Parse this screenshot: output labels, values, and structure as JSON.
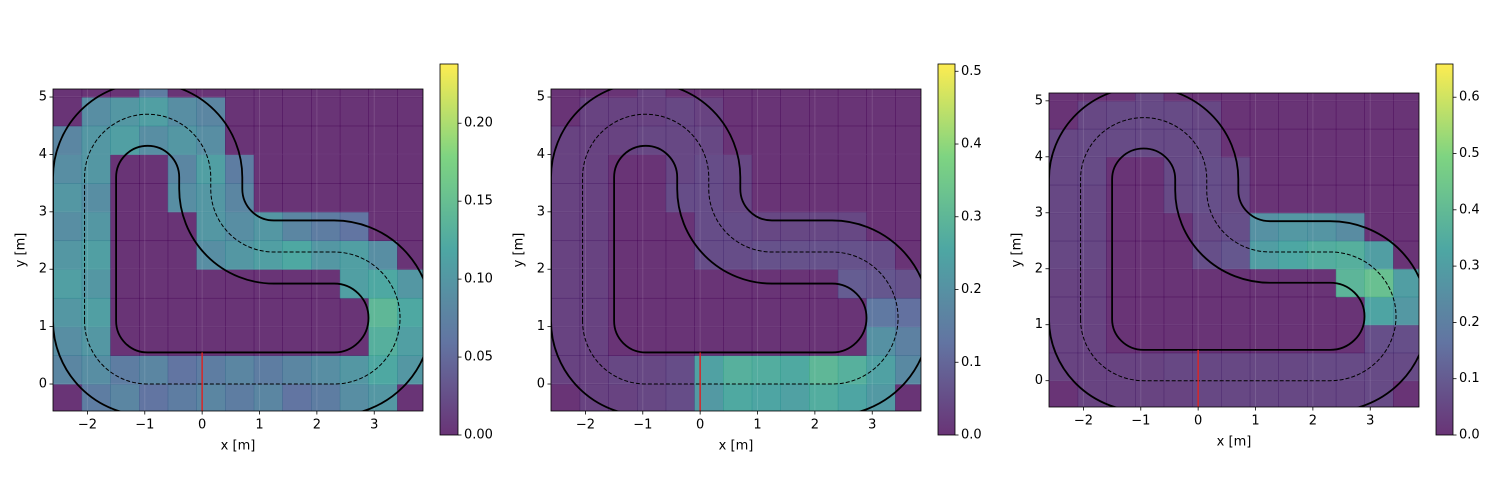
{
  "chart_data": [
    {
      "type": "heatmap",
      "xlabel": "x [m]",
      "ylabel": "y [m]",
      "colormap": "viridis",
      "alpha": 0.8,
      "xlim": [
        -2.6,
        3.85
      ],
      "ylim": [
        -0.47,
        5.14
      ],
      "xticks": [
        {
          "value": -2,
          "label": "−2"
        },
        {
          "value": -1,
          "label": "−1"
        },
        0,
        1,
        2,
        3
      ],
      "yticks": [
        0,
        1,
        2,
        3,
        4,
        5
      ],
      "x_edges": [
        -2.6,
        -2.1,
        -1.6,
        -1.1,
        -0.6,
        -0.1,
        0.4,
        0.9,
        1.4,
        1.9,
        2.4,
        2.9,
        3.4,
        3.9
      ],
      "y_edges": [
        -0.5,
        0,
        0.5,
        1,
        1.5,
        2,
        2.5,
        3,
        3.5,
        4,
        4.5,
        5,
        5.5
      ],
      "z": [
        [
          0,
          0.07,
          0.08,
          0.06,
          0.07,
          0.08,
          0.07,
          0.08,
          0.06,
          0.07,
          0.09,
          0.1,
          0
        ],
        [
          0.08,
          0.09,
          0.07,
          0.08,
          0.06,
          0.07,
          0.08,
          0.07,
          0.08,
          0.09,
          0.1,
          0.12,
          0.1
        ],
        [
          0.09,
          0.1,
          0,
          0,
          0,
          0,
          0,
          0,
          0,
          0,
          0,
          0.13,
          0.11
        ],
        [
          0.1,
          0.11,
          0,
          0,
          0,
          0,
          0,
          0,
          0,
          0,
          0,
          0.14,
          0.12
        ],
        [
          0.11,
          0.1,
          0,
          0,
          0,
          0,
          0,
          0,
          0,
          0,
          0.11,
          0.12,
          0.1
        ],
        [
          0.1,
          0.11,
          0,
          0,
          0,
          0.09,
          0.1,
          0.11,
          0.12,
          0.1,
          0.11,
          0.09,
          0
        ],
        [
          0.09,
          0.1,
          0,
          0,
          0,
          0.1,
          0.09,
          0.1,
          0.08,
          0.07,
          0.06,
          0,
          0
        ],
        [
          0.1,
          0.09,
          0,
          0,
          0.09,
          0.1,
          0.08,
          0,
          0,
          0,
          0,
          0,
          0
        ],
        [
          0.09,
          0.1,
          0,
          0,
          0.08,
          0.11,
          0.07,
          0,
          0,
          0,
          0,
          0,
          0
        ],
        [
          0.08,
          0.1,
          0.11,
          0.09,
          0.1,
          0.09,
          0,
          0,
          0,
          0,
          0,
          0,
          0
        ],
        [
          0,
          0.09,
          0.1,
          0.11,
          0.09,
          0.08,
          0,
          0,
          0,
          0,
          0,
          0,
          0
        ],
        [
          0,
          0,
          0,
          0.07,
          0,
          0,
          0,
          0,
          0,
          0,
          0,
          0,
          0
        ]
      ],
      "colorbar": {
        "lim": [
          0,
          0.238
        ],
        "ticks": [
          {
            "value": 0,
            "label": "0.00"
          },
          {
            "value": 0.05,
            "label": "0.05"
          },
          {
            "value": 0.1,
            "label": "0.10"
          },
          {
            "value": 0.15,
            "label": "0.15"
          },
          {
            "value": 0.2,
            "label": "0.20"
          }
        ]
      }
    },
    {
      "type": "heatmap",
      "xlabel": "x [m]",
      "ylabel": "y [m]",
      "colormap": "viridis",
      "alpha": 0.8,
      "xlim": [
        -2.6,
        3.85
      ],
      "ylim": [
        -0.47,
        5.14
      ],
      "xticks": [
        {
          "value": -2,
          "label": "−2"
        },
        {
          "value": -1,
          "label": "−1"
        },
        0,
        1,
        2,
        3
      ],
      "yticks": [
        0,
        1,
        2,
        3,
        4,
        5
      ],
      "x_edges": [
        -2.6,
        -2.1,
        -1.6,
        -1.1,
        -0.6,
        -0.1,
        0.4,
        0.9,
        1.4,
        1.9,
        2.4,
        2.9,
        3.4,
        3.9
      ],
      "y_edges": [
        -0.5,
        0,
        0.5,
        1,
        1.5,
        2,
        2.5,
        3,
        3.5,
        4,
        4.5,
        5,
        5.5
      ],
      "z": [
        [
          0,
          0.03,
          0.03,
          0.04,
          0.05,
          0.22,
          0.26,
          0.25,
          0.24,
          0.27,
          0.25,
          0.22,
          0
        ],
        [
          0.03,
          0.03,
          0.04,
          0.04,
          0.05,
          0.24,
          0.28,
          0.27,
          0.26,
          0.3,
          0.28,
          0.24,
          0.18
        ],
        [
          0.03,
          0.03,
          0,
          0,
          0,
          0,
          0,
          0,
          0,
          0,
          0,
          0.2,
          0.16
        ],
        [
          0.03,
          0.03,
          0,
          0,
          0,
          0,
          0,
          0,
          0,
          0,
          0,
          0.14,
          0.12
        ],
        [
          0.03,
          0.03,
          0,
          0,
          0,
          0,
          0,
          0,
          0,
          0,
          0.08,
          0.07,
          0.06
        ],
        [
          0.03,
          0.03,
          0,
          0,
          0,
          0.05,
          0.05,
          0.06,
          0.06,
          0.06,
          0.06,
          0.05,
          0
        ],
        [
          0.03,
          0.03,
          0,
          0,
          0,
          0.05,
          0.05,
          0.04,
          0.04,
          0.04,
          0.04,
          0,
          0
        ],
        [
          0.03,
          0.03,
          0,
          0,
          0.05,
          0.05,
          0.04,
          0,
          0,
          0,
          0,
          0,
          0
        ],
        [
          0.03,
          0.03,
          0,
          0,
          0.04,
          0.05,
          0.04,
          0,
          0,
          0,
          0,
          0,
          0
        ],
        [
          0.03,
          0.03,
          0.03,
          0.04,
          0.04,
          0.04,
          0,
          0,
          0,
          0,
          0,
          0,
          0
        ],
        [
          0,
          0.03,
          0.03,
          0.03,
          0.04,
          0.03,
          0,
          0,
          0,
          0,
          0,
          0,
          0
        ],
        [
          0,
          0,
          0,
          0.03,
          0,
          0,
          0,
          0,
          0,
          0,
          0,
          0,
          0
        ]
      ],
      "colorbar": {
        "lim": [
          0,
          0.51
        ],
        "ticks": [
          {
            "value": 0,
            "label": "0.0"
          },
          0.1,
          0.2,
          0.3,
          0.4,
          0.5
        ]
      }
    },
    {
      "type": "heatmap",
      "xlabel": "x [m]",
      "ylabel": "y [m]",
      "colormap": "viridis",
      "alpha": 0.8,
      "xlim": [
        -2.6,
        3.85
      ],
      "ylim": [
        -0.47,
        5.14
      ],
      "xticks": [
        {
          "value": -2,
          "label": "−2"
        },
        {
          "value": -1,
          "label": "−1"
        },
        0,
        1,
        2,
        3
      ],
      "yticks": [
        0,
        1,
        2,
        3,
        4,
        5
      ],
      "x_edges": [
        -2.6,
        -2.1,
        -1.6,
        -1.1,
        -0.6,
        -0.1,
        0.4,
        0.9,
        1.4,
        1.9,
        2.4,
        2.9,
        3.4,
        3.9
      ],
      "y_edges": [
        -0.5,
        0,
        0.5,
        1,
        1.5,
        2,
        2.5,
        3,
        3.5,
        4,
        4.5,
        5,
        5.5
      ],
      "z": [
        [
          0,
          0.04,
          0.04,
          0.04,
          0.04,
          0.05,
          0.05,
          0.05,
          0.05,
          0.05,
          0.05,
          0.06,
          0
        ],
        [
          0.04,
          0.04,
          0.04,
          0.04,
          0.05,
          0.05,
          0.05,
          0.05,
          0.05,
          0.06,
          0.06,
          0.06,
          0.06
        ],
        [
          0.04,
          0.04,
          0,
          0,
          0,
          0,
          0,
          0,
          0,
          0,
          0,
          0.07,
          0.07
        ],
        [
          0.04,
          0.04,
          0,
          0,
          0,
          0,
          0,
          0,
          0,
          0,
          0,
          0.32,
          0.28
        ],
        [
          0.04,
          0.04,
          0,
          0,
          0,
          0,
          0,
          0,
          0,
          0,
          0.38,
          0.42,
          0.3
        ],
        [
          0.05,
          0.05,
          0,
          0,
          0,
          0.07,
          0.09,
          0.3,
          0.33,
          0.35,
          0.36,
          0.3,
          0
        ],
        [
          0.05,
          0.05,
          0,
          0,
          0,
          0.06,
          0.07,
          0.26,
          0.28,
          0.27,
          0.24,
          0,
          0
        ],
        [
          0.05,
          0.05,
          0,
          0,
          0.06,
          0.07,
          0.06,
          0,
          0,
          0,
          0,
          0,
          0
        ],
        [
          0.05,
          0.06,
          0,
          0,
          0.06,
          0.07,
          0.06,
          0,
          0,
          0,
          0,
          0,
          0
        ],
        [
          0.05,
          0.06,
          0.06,
          0.06,
          0.06,
          0.06,
          0,
          0,
          0,
          0,
          0,
          0,
          0
        ],
        [
          0,
          0.05,
          0.06,
          0.06,
          0.06,
          0.05,
          0,
          0,
          0,
          0,
          0,
          0,
          0
        ],
        [
          0,
          0,
          0,
          0.05,
          0,
          0,
          0,
          0,
          0,
          0,
          0,
          0,
          0
        ]
      ],
      "colorbar": {
        "lim": [
          0,
          0.659
        ],
        "ticks": [
          {
            "value": 0,
            "label": "0.0"
          },
          0.1,
          0.2,
          0.3,
          0.4,
          0.5,
          0.6
        ]
      }
    }
  ]
}
